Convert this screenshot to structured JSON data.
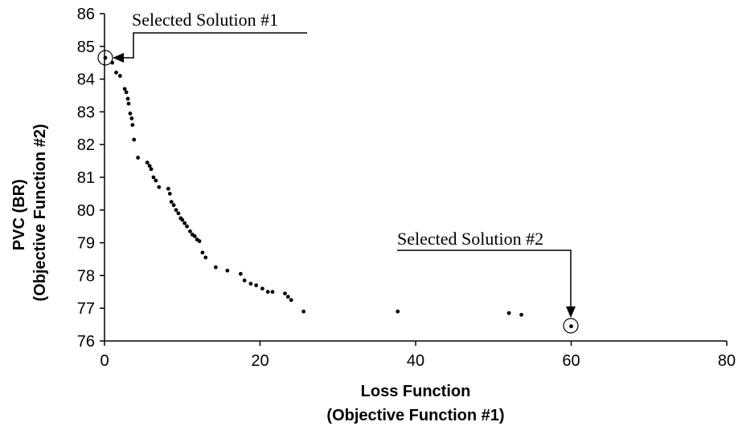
{
  "chart_data": {
    "type": "scatter",
    "title": "",
    "xlabel": [
      "Loss Function",
      "(Objective Function #1)"
    ],
    "ylabel": [
      "PVC (BR)",
      "(Objective Function #2)"
    ],
    "xlim": [
      0,
      80
    ],
    "ylim": [
      76,
      86
    ],
    "xticks": [
      "0",
      "20",
      "40",
      "60",
      "80"
    ],
    "yticks": [
      "76",
      "77",
      "78",
      "79",
      "80",
      "81",
      "82",
      "83",
      "84",
      "85",
      "86"
    ],
    "grid": false,
    "legend": "none",
    "point_color": "#000000",
    "points": [
      [
        0.1,
        84.65
      ],
      [
        1.0,
        84.5
      ],
      [
        1.5,
        84.2
      ],
      [
        2.0,
        84.1
      ],
      [
        2.6,
        83.7
      ],
      [
        2.8,
        83.6
      ],
      [
        3.0,
        83.4
      ],
      [
        3.1,
        83.25
      ],
      [
        3.3,
        82.95
      ],
      [
        3.5,
        82.8
      ],
      [
        3.6,
        82.6
      ],
      [
        3.8,
        82.15
      ],
      [
        4.3,
        81.6
      ],
      [
        5.5,
        81.45
      ],
      [
        5.8,
        81.35
      ],
      [
        6.0,
        81.25
      ],
      [
        6.3,
        81.0
      ],
      [
        6.6,
        80.9
      ],
      [
        7.0,
        80.7
      ],
      [
        8.2,
        80.65
      ],
      [
        8.4,
        80.5
      ],
      [
        8.6,
        80.25
      ],
      [
        8.9,
        80.15
      ],
      [
        9.2,
        80.0
      ],
      [
        9.5,
        79.9
      ],
      [
        9.8,
        79.75
      ],
      [
        10.0,
        79.7
      ],
      [
        10.3,
        79.6
      ],
      [
        10.6,
        79.5
      ],
      [
        11.0,
        79.35
      ],
      [
        11.3,
        79.25
      ],
      [
        11.6,
        79.2
      ],
      [
        11.9,
        79.1
      ],
      [
        12.2,
        79.05
      ],
      [
        12.6,
        78.7
      ],
      [
        13.0,
        78.55
      ],
      [
        14.3,
        78.25
      ],
      [
        15.8,
        78.15
      ],
      [
        17.5,
        78.05
      ],
      [
        18.0,
        77.85
      ],
      [
        18.8,
        77.75
      ],
      [
        19.5,
        77.7
      ],
      [
        20.3,
        77.6
      ],
      [
        21.0,
        77.5
      ],
      [
        21.6,
        77.5
      ],
      [
        23.2,
        77.45
      ],
      [
        23.6,
        77.35
      ],
      [
        24.0,
        77.25
      ],
      [
        25.6,
        76.9
      ],
      [
        37.7,
        76.9
      ],
      [
        52.0,
        76.85
      ],
      [
        53.6,
        76.8
      ],
      [
        60.0,
        76.45
      ]
    ],
    "annotations": [
      {
        "text": "Selected Solution #1",
        "x": 0.1,
        "y": 84.65
      },
      {
        "text": "Selected Solution #2",
        "x": 60.0,
        "y": 76.45
      }
    ]
  }
}
